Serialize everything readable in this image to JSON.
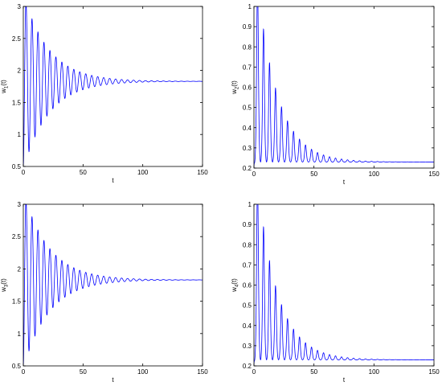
{
  "chart_data": [
    {
      "type": "line",
      "xlabel": "t",
      "ylabel_main": "w",
      "ylabel_sub": "1",
      "ylabel_suffix": "(t)",
      "xlim": [
        0,
        150
      ],
      "ylim": [
        0.5,
        3
      ],
      "xticks": [
        0,
        50,
        100,
        150
      ],
      "yticks": [
        0.5,
        1,
        1.5,
        2,
        2.5,
        3
      ],
      "ytick_labels": [
        "0.5",
        "1",
        "1.5",
        "2",
        "2.5",
        "3"
      ],
      "grid": false,
      "series": [
        {
          "color": "#0000ff",
          "model": "damped_oscillation",
          "start": 0.5,
          "equilibrium": 1.83,
          "amplitude": 1.0,
          "decay": 0.047,
          "period": 5.0
        }
      ]
    },
    {
      "type": "line",
      "xlabel": "t",
      "ylabel_main": "w",
      "ylabel_sub": "2",
      "ylabel_suffix": "(t)",
      "xlim": [
        0,
        150
      ],
      "ylim": [
        0.2,
        1
      ],
      "xticks": [
        0,
        50,
        100,
        150
      ],
      "yticks": [
        0.2,
        0.3,
        0.4,
        0.5,
        0.6,
        0.7,
        0.8,
        0.9,
        1
      ],
      "ytick_labels": [
        "0.2",
        "0.3",
        "0.4",
        "0.5",
        "0.6",
        "0.7",
        "0.8",
        "0.9",
        "1"
      ],
      "grid": false,
      "series": [
        {
          "color": "#0000ff",
          "model": "decaying_spikes",
          "start": 0.2,
          "equilibrium": 0.23,
          "peak_height": 0.75,
          "peak_decay": 0.058,
          "trough_height": 0.3,
          "trough_decay": 0.06,
          "period": 5.0
        }
      ]
    },
    {
      "type": "line",
      "xlabel": "t",
      "ylabel_main": "w",
      "ylabel_sub": "3",
      "ylabel_suffix": "(t)",
      "xlim": [
        0,
        150
      ],
      "ylim": [
        0.5,
        3
      ],
      "xticks": [
        0,
        50,
        100,
        150
      ],
      "yticks": [
        0.5,
        1,
        1.5,
        2,
        2.5,
        3
      ],
      "ytick_labels": [
        "0.5",
        "1",
        "1.5",
        "2",
        "2.5",
        "3"
      ],
      "grid": false,
      "series": [
        {
          "color": "#0000ff",
          "model": "damped_oscillation",
          "start": 0.5,
          "equilibrium": 1.83,
          "amplitude": 1.0,
          "decay": 0.047,
          "period": 5.0
        }
      ]
    },
    {
      "type": "line",
      "xlabel": "t",
      "ylabel_main": "w",
      "ylabel_sub": "4",
      "ylabel_suffix": "(t)",
      "xlim": [
        0,
        150
      ],
      "ylim": [
        0.2,
        1
      ],
      "xticks": [
        0,
        50,
        100,
        150
      ],
      "yticks": [
        0.2,
        0.3,
        0.4,
        0.5,
        0.6,
        0.7,
        0.8,
        0.9,
        1
      ],
      "ytick_labels": [
        "0.2",
        "0.3",
        "0.4",
        "0.5",
        "0.6",
        "0.7",
        "0.8",
        "0.9",
        "1"
      ],
      "grid": false,
      "series": [
        {
          "color": "#0000ff",
          "model": "decaying_spikes",
          "start": 0.2,
          "equilibrium": 0.23,
          "peak_height": 0.75,
          "peak_decay": 0.058,
          "trough_height": 0.3,
          "trough_decay": 0.06,
          "period": 5.0
        }
      ]
    }
  ]
}
